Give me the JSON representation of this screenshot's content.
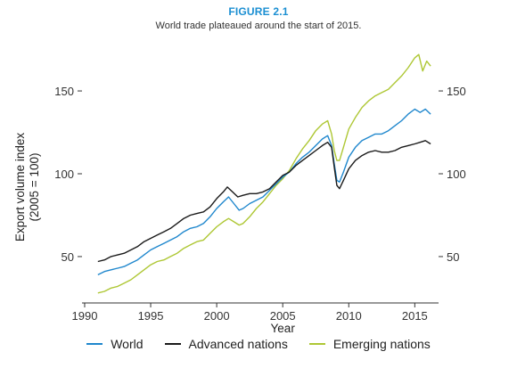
{
  "figure": {
    "label": "FIGURE 2.1",
    "subtitle": "World trade plateaued around the start of 2015."
  },
  "chart_data": {
    "type": "line",
    "title": "FIGURE 2.1",
    "subtitle": "World trade plateaued around the start of 2015.",
    "xlabel": "Year",
    "ylabel": [
      "Export volume index",
      "(2005 = 100)"
    ],
    "xlim": [
      1989.8,
      2016.8
    ],
    "ylim": [
      22,
      178
    ],
    "x_ticks": [
      1990,
      1995,
      2000,
      2005,
      2010,
      2015
    ],
    "x_tick_labels": [
      "1990",
      "1995",
      "2000",
      "2005",
      "2010",
      "2015"
    ],
    "y_ticks": [
      50,
      100,
      150
    ],
    "y_tick_labels": [
      "50",
      "100",
      "150"
    ],
    "y_ticks_right": true,
    "grid": false,
    "legend_position": "bottom",
    "series": [
      {
        "name": "World",
        "color": "#1f87cd",
        "points": [
          [
            1991.0,
            39
          ],
          [
            1991.5,
            41
          ],
          [
            1992.0,
            42
          ],
          [
            1992.5,
            43
          ],
          [
            1993.0,
            44
          ],
          [
            1993.5,
            46
          ],
          [
            1994.0,
            48
          ],
          [
            1994.5,
            51
          ],
          [
            1995.0,
            54
          ],
          [
            1995.5,
            56
          ],
          [
            1996.0,
            58
          ],
          [
            1996.5,
            60
          ],
          [
            1997.0,
            62
          ],
          [
            1997.5,
            65
          ],
          [
            1998.0,
            67
          ],
          [
            1998.5,
            68
          ],
          [
            1999.0,
            70
          ],
          [
            1999.5,
            74
          ],
          [
            2000.0,
            79
          ],
          [
            2000.5,
            83
          ],
          [
            2000.9,
            86
          ],
          [
            2001.3,
            82
          ],
          [
            2001.7,
            78
          ],
          [
            2002.0,
            79
          ],
          [
            2002.5,
            82
          ],
          [
            2003.0,
            84
          ],
          [
            2003.5,
            86
          ],
          [
            2004.0,
            90
          ],
          [
            2004.5,
            94
          ],
          [
            2005.0,
            98
          ],
          [
            2005.5,
            101
          ],
          [
            2006.0,
            106
          ],
          [
            2006.5,
            110
          ],
          [
            2007.0,
            113
          ],
          [
            2007.5,
            117
          ],
          [
            2008.0,
            121
          ],
          [
            2008.4,
            123
          ],
          [
            2008.7,
            117
          ],
          [
            2008.9,
            106
          ],
          [
            2009.1,
            96
          ],
          [
            2009.3,
            95
          ],
          [
            2009.6,
            101
          ],
          [
            2010.0,
            110
          ],
          [
            2010.5,
            116
          ],
          [
            2011.0,
            120
          ],
          [
            2011.5,
            122
          ],
          [
            2012.0,
            124
          ],
          [
            2012.5,
            124
          ],
          [
            2013.0,
            126
          ],
          [
            2013.5,
            129
          ],
          [
            2014.0,
            132
          ],
          [
            2014.5,
            136
          ],
          [
            2015.0,
            139
          ],
          [
            2015.4,
            137
          ],
          [
            2015.8,
            139
          ],
          [
            2016.2,
            136
          ]
        ]
      },
      {
        "name": "Advanced nations",
        "color": "#1a1a1a",
        "points": [
          [
            1991.0,
            47
          ],
          [
            1991.5,
            48
          ],
          [
            1992.0,
            50
          ],
          [
            1992.5,
            51
          ],
          [
            1993.0,
            52
          ],
          [
            1993.5,
            54
          ],
          [
            1994.0,
            56
          ],
          [
            1994.5,
            59
          ],
          [
            1995.0,
            61
          ],
          [
            1995.5,
            63
          ],
          [
            1996.0,
            65
          ],
          [
            1996.5,
            67
          ],
          [
            1997.0,
            70
          ],
          [
            1997.5,
            73
          ],
          [
            1998.0,
            75
          ],
          [
            1998.5,
            76
          ],
          [
            1999.0,
            77
          ],
          [
            1999.5,
            80
          ],
          [
            2000.0,
            85
          ],
          [
            2000.5,
            89
          ],
          [
            2000.8,
            92
          ],
          [
            2001.2,
            89
          ],
          [
            2001.6,
            86
          ],
          [
            2002.0,
            87
          ],
          [
            2002.5,
            88
          ],
          [
            2003.0,
            88
          ],
          [
            2003.5,
            89
          ],
          [
            2004.0,
            91
          ],
          [
            2004.5,
            95
          ],
          [
            2005.0,
            99
          ],
          [
            2005.5,
            101
          ],
          [
            2006.0,
            105
          ],
          [
            2006.5,
            108
          ],
          [
            2007.0,
            111
          ],
          [
            2007.5,
            114
          ],
          [
            2008.0,
            117
          ],
          [
            2008.4,
            119
          ],
          [
            2008.7,
            116
          ],
          [
            2008.9,
            104
          ],
          [
            2009.1,
            93
          ],
          [
            2009.3,
            91
          ],
          [
            2009.6,
            96
          ],
          [
            2010.0,
            103
          ],
          [
            2010.5,
            108
          ],
          [
            2011.0,
            111
          ],
          [
            2011.5,
            113
          ],
          [
            2012.0,
            114
          ],
          [
            2012.5,
            113
          ],
          [
            2013.0,
            113
          ],
          [
            2013.5,
            114
          ],
          [
            2014.0,
            116
          ],
          [
            2014.5,
            117
          ],
          [
            2015.0,
            118
          ],
          [
            2015.4,
            119
          ],
          [
            2015.8,
            120
          ],
          [
            2016.2,
            118
          ]
        ]
      },
      {
        "name": "Emerging nations",
        "color": "#aec734",
        "points": [
          [
            1991.0,
            28
          ],
          [
            1991.5,
            29
          ],
          [
            1992.0,
            31
          ],
          [
            1992.5,
            32
          ],
          [
            1993.0,
            34
          ],
          [
            1993.5,
            36
          ],
          [
            1994.0,
            39
          ],
          [
            1994.5,
            42
          ],
          [
            1995.0,
            45
          ],
          [
            1995.5,
            47
          ],
          [
            1996.0,
            48
          ],
          [
            1996.5,
            50
          ],
          [
            1997.0,
            52
          ],
          [
            1997.5,
            55
          ],
          [
            1998.0,
            57
          ],
          [
            1998.5,
            59
          ],
          [
            1999.0,
            60
          ],
          [
            1999.5,
            64
          ],
          [
            2000.0,
            68
          ],
          [
            2000.5,
            71
          ],
          [
            2000.9,
            73
          ],
          [
            2001.3,
            71
          ],
          [
            2001.7,
            69
          ],
          [
            2002.0,
            70
          ],
          [
            2002.5,
            74
          ],
          [
            2003.0,
            79
          ],
          [
            2003.5,
            83
          ],
          [
            2004.0,
            88
          ],
          [
            2004.5,
            93
          ],
          [
            2005.0,
            97
          ],
          [
            2005.5,
            102
          ],
          [
            2006.0,
            109
          ],
          [
            2006.5,
            115
          ],
          [
            2007.0,
            120
          ],
          [
            2007.5,
            126
          ],
          [
            2008.0,
            130
          ],
          [
            2008.4,
            132
          ],
          [
            2008.7,
            124
          ],
          [
            2008.9,
            114
          ],
          [
            2009.1,
            108
          ],
          [
            2009.3,
            108
          ],
          [
            2009.6,
            116
          ],
          [
            2010.0,
            127
          ],
          [
            2010.5,
            134
          ],
          [
            2011.0,
            140
          ],
          [
            2011.5,
            144
          ],
          [
            2012.0,
            147
          ],
          [
            2012.5,
            149
          ],
          [
            2013.0,
            151
          ],
          [
            2013.5,
            155
          ],
          [
            2014.0,
            159
          ],
          [
            2014.5,
            164
          ],
          [
            2015.0,
            170
          ],
          [
            2015.3,
            172
          ],
          [
            2015.6,
            162
          ],
          [
            2015.9,
            168
          ],
          [
            2016.2,
            165
          ]
        ]
      }
    ]
  }
}
